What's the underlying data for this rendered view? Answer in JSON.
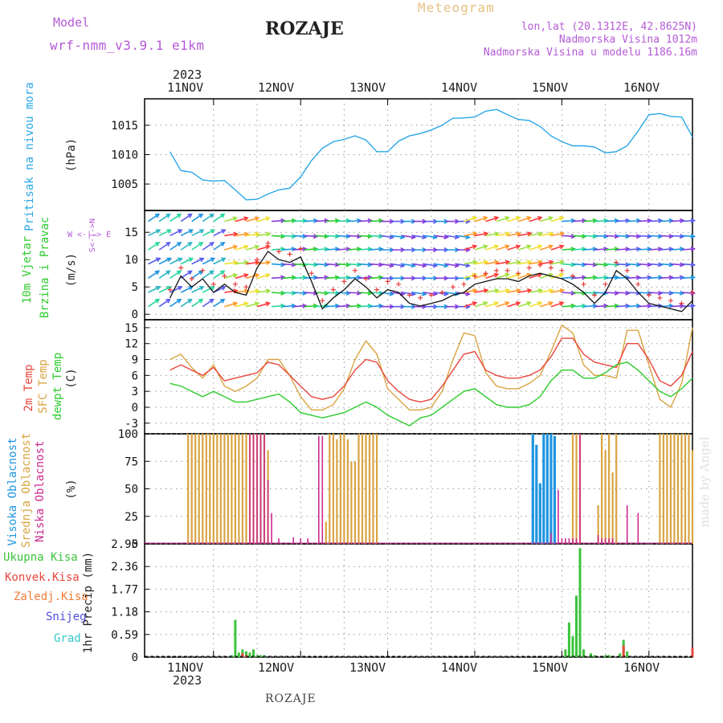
{
  "header": {
    "model_label": "Model",
    "model_name": "wrf-nmm_v3.9.1  e1km",
    "station": "ROZAJE",
    "meteogram": "Meteogram",
    "lonlat": "lon,lat (20.1312E, 42.8625N)",
    "altitude": "Nadmorska Visina 1012m",
    "model_altitude": "Nadmorska Visina u modelu 1186.16m"
  },
  "footer": {
    "station": "ROZAJE",
    "credit": "made by Angel"
  },
  "time_axis": {
    "year": "2023",
    "days": [
      "11NOV",
      "12NOV",
      "13NOV",
      "14NOV",
      "15NOV",
      "16NOV"
    ]
  },
  "panel_labels": {
    "pressure": {
      "title": "Pritisak na nivou mora",
      "unit": "(hPa)"
    },
    "wind": {
      "title1": "10m Vjetar",
      "title2": "Brzina i Pravac",
      "unit": "(m/s)",
      "compass": "W  <-|->  E",
      "compass_ns": "S<-|->N"
    },
    "temp": {
      "t2m": "2m Temp",
      "sfc": "SFC Temp",
      "dew": "dewpt Temp",
      "unit": "(C)"
    },
    "cloud": {
      "high": "Visoka Oblacnost",
      "mid": "Srednja Oblacnost",
      "low": "Niska Oblacnost",
      "unit": "(%)"
    },
    "precip": {
      "total": "Ukupna Kisa",
      "conv": "Konvek.Kisa",
      "frozen": "Zaledj.Kisa",
      "snow": "Snijeg",
      "graupel": "Grad",
      "unit": "1hr Precip (mm)"
    }
  },
  "colors": {
    "pressure": "#29a7e6",
    "t2m": "#e8463c",
    "sfc": "#d9a441",
    "dew": "#2ccc2c",
    "high": "#1f95e0",
    "mid": "#d9a441",
    "low": "#cc2b8f",
    "total": "#3cc43c",
    "conv": "#e8463c",
    "frozen": "#f07c36",
    "snow": "#5050e0",
    "graupel": "#38c8c8"
  },
  "chart_data": [
    {
      "type": "line",
      "title": "Pritisak na nivou mora",
      "ylabel": "(hPa)",
      "yticks": [
        1005,
        1010,
        1015
      ],
      "ylim": [
        1000.5,
        1019.5
      ],
      "x_hours": [
        0,
        3,
        6,
        9,
        12,
        15,
        18,
        21,
        24,
        27,
        30,
        33,
        36,
        39,
        42,
        45,
        48,
        51,
        54,
        57,
        60,
        63,
        66,
        69,
        72,
        75,
        78,
        80,
        84,
        87,
        90,
        93,
        96,
        99,
        102,
        105,
        108,
        111,
        114,
        117,
        120,
        123,
        126,
        129,
        132,
        135,
        138,
        141,
        144
      ],
      "series": [
        {
          "values": [
            1010.5,
            1007.3,
            1007.0,
            1005.7,
            1005.5,
            1005.6,
            1004.0,
            1002.3,
            1002.4,
            1003.3,
            1004.0,
            1004.3,
            1006.2,
            1009.0,
            1011.1,
            1012.2,
            1012.6,
            1013.2,
            1012.5,
            1010.5,
            1010.5,
            1012.3,
            1013.2,
            1013.6,
            1014.2,
            1015.0,
            1016.2,
            1016.2,
            1016.4,
            1017.4,
            1017.7,
            1016.8,
            1016.0,
            1015.8,
            1014.8,
            1013.2,
            1012.2,
            1011.5,
            1011.5,
            1011.3,
            1010.3,
            1010.5,
            1011.5,
            1014.0,
            1016.8,
            1017.0,
            1016.5,
            1016.4,
            1013.0
          ]
        }
      ]
    },
    {
      "type": "line",
      "title": "10m Vjetar Brzina i Pravac",
      "ylabel": "(m/s)",
      "yticks": [
        0,
        5,
        10,
        15
      ],
      "ylim": [
        -1,
        19
      ],
      "x_hours": [
        0,
        3,
        6,
        9,
        12,
        15,
        18,
        21,
        24,
        27,
        30,
        33,
        36,
        39,
        42,
        45,
        48,
        51,
        54,
        57,
        60,
        63,
        66,
        69,
        72,
        75,
        78,
        81,
        84,
        87,
        90,
        93,
        96,
        99,
        102,
        105,
        108,
        111,
        114,
        117,
        120,
        123,
        126,
        129,
        132,
        135,
        138,
        141,
        144
      ],
      "series": [
        {
          "name": "speed",
          "values": [
            3.0,
            7.0,
            5.0,
            6.5,
            4.0,
            5.5,
            4.0,
            3.5,
            8.5,
            11.5,
            10.0,
            9.5,
            10.5,
            6.0,
            1.0,
            3.0,
            4.5,
            6.5,
            5.0,
            3.0,
            4.5,
            4.0,
            2.0,
            1.5,
            2.0,
            2.5,
            3.5,
            4.0,
            5.5,
            6.0,
            6.5,
            6.5,
            6.0,
            7.0,
            7.5,
            7.0,
            6.5,
            5.5,
            4.0,
            2.0,
            4.0,
            8.0,
            6.5,
            4.0,
            2.0,
            1.5,
            1.0,
            0.5,
            2.5
          ]
        }
      ]
    },
    {
      "type": "line",
      "title": "2m Temp / SFC Temp / dewpt Temp",
      "ylabel": "(C)",
      "yticks": [
        -3,
        0,
        3,
        6,
        9,
        12,
        15
      ],
      "ylim": [
        -5,
        16.5
      ],
      "x_hours": [
        0,
        3,
        6,
        9,
        12,
        15,
        18,
        21,
        24,
        27,
        30,
        33,
        36,
        39,
        42,
        45,
        48,
        51,
        54,
        57,
        60,
        63,
        66,
        69,
        72,
        75,
        78,
        81,
        84,
        87,
        90,
        93,
        96,
        99,
        102,
        105,
        108,
        111,
        114,
        117,
        120,
        123,
        126,
        129,
        132,
        135,
        138,
        141,
        144
      ],
      "series": [
        {
          "name": "2m Temp",
          "values": [
            7.0,
            8.0,
            7.0,
            6.0,
            7.5,
            5.0,
            5.5,
            6.0,
            6.5,
            8.5,
            8.0,
            6.0,
            4.0,
            2.0,
            1.5,
            2.0,
            4.0,
            7.0,
            9.0,
            8.5,
            5.0,
            3.0,
            1.5,
            1.0,
            1.5,
            4.0,
            7.0,
            10.0,
            10.5,
            7.0,
            6.0,
            5.5,
            5.5,
            6.0,
            7.0,
            9.5,
            13.0,
            13.0,
            10.0,
            8.5,
            8.0,
            7.5,
            12.0,
            12.0,
            9.0,
            5.0,
            4.0,
            6.0,
            10.5
          ]
        },
        {
          "name": "SFC Temp",
          "values": [
            9.0,
            10.0,
            7.5,
            5.5,
            8.0,
            4.0,
            3.0,
            4.0,
            5.5,
            9.0,
            9.0,
            6.0,
            2.0,
            -0.5,
            -0.5,
            0.5,
            3.5,
            9.0,
            12.5,
            10.0,
            3.5,
            1.5,
            -0.5,
            -0.5,
            0.0,
            3.0,
            9.0,
            14.0,
            13.5,
            6.5,
            4.0,
            3.5,
            3.5,
            4.5,
            6.0,
            10.5,
            15.5,
            14.0,
            8.0,
            6.0,
            6.0,
            5.5,
            14.5,
            14.5,
            8.0,
            1.5,
            0.0,
            4.5,
            15.0
          ]
        },
        {
          "name": "dewpt Temp",
          "values": [
            4.5,
            4.0,
            3.0,
            2.0,
            3.0,
            2.0,
            1.0,
            1.0,
            1.5,
            2.0,
            2.5,
            1.0,
            -1.0,
            -1.5,
            -2.0,
            -1.5,
            -1.0,
            0.0,
            1.0,
            0.0,
            -1.5,
            -2.5,
            -3.5,
            -2.0,
            -1.5,
            0.0,
            1.5,
            3.0,
            3.5,
            2.0,
            0.5,
            0.0,
            0.0,
            0.5,
            2.0,
            5.0,
            7.0,
            7.0,
            5.5,
            5.5,
            6.5,
            8.0,
            8.5,
            7.0,
            5.0,
            3.0,
            2.0,
            3.5,
            5.5
          ]
        }
      ]
    },
    {
      "type": "bar",
      "title": "Visoka / Srednja / Niska Oblacnost",
      "ylabel": "(%)",
      "yticks": [
        0,
        25,
        50,
        75,
        100
      ],
      "ylim": [
        0,
        100
      ],
      "series": [
        {
          "name": "Visoka Oblacnost",
          "hours": [
            100,
            101,
            102,
            103,
            104,
            105,
            106
          ],
          "values": [
            100,
            90,
            55,
            100,
            100,
            100,
            98
          ]
        },
        {
          "name": "Srednja Oblacnost",
          "hours": [
            5,
            6,
            7,
            8,
            9,
            10,
            11,
            12,
            13,
            14,
            15,
            16,
            17,
            18,
            19,
            20,
            21,
            22,
            23,
            24,
            25,
            26,
            27,
            43,
            44,
            45,
            46,
            47,
            48,
            49,
            50,
            51,
            52,
            53,
            54,
            55,
            56,
            57,
            111,
            112,
            113,
            118,
            119,
            120,
            121,
            122,
            123,
            135,
            136,
            137,
            138,
            139,
            140,
            141,
            142,
            143,
            144
          ],
          "values": [
            100,
            100,
            100,
            100,
            100,
            100,
            100,
            100,
            100,
            100,
            100,
            100,
            100,
            100,
            100,
            100,
            100,
            100,
            100,
            100,
            100,
            100,
            85,
            20,
            100,
            100,
            95,
            100,
            100,
            95,
            75,
            75,
            100,
            100,
            100,
            100,
            100,
            100,
            100,
            100,
            100,
            35,
            100,
            85,
            100,
            65,
            100,
            100,
            100,
            100,
            100,
            100,
            100,
            100,
            100,
            100,
            85
          ]
        },
        {
          "name": "Niska Oblacnost",
          "hours": [
            22,
            23,
            24,
            25,
            26,
            27,
            28,
            30,
            34,
            36,
            38,
            41,
            42,
            105,
            107,
            108,
            109,
            110,
            111,
            112,
            113,
            118,
            119,
            120,
            121,
            122,
            126,
            129
          ],
          "values": [
            100,
            100,
            100,
            100,
            100,
            58,
            28,
            5,
            6,
            5,
            5,
            98,
            98,
            10,
            49,
            5,
            5,
            5,
            5,
            5,
            100,
            8,
            5,
            5,
            5,
            5,
            35,
            28
          ]
        }
      ]
    },
    {
      "type": "bar",
      "title": "1hr Precip",
      "ylabel": "1hr Precip (mm)",
      "yticks": [
        0,
        0.59,
        1.18,
        1.77,
        2.36,
        2.95
      ],
      "ylim": [
        0,
        2.95
      ],
      "series": [
        {
          "name": "Ukupna Kisa",
          "hours": [
            17,
            18,
            19,
            20,
            21,
            22,
            23,
            24,
            25,
            26,
            109,
            110,
            111,
            112,
            113,
            114,
            116,
            117,
            120,
            121,
            124,
            125,
            126,
            144
          ],
          "values": [
            0.05,
            0.97,
            0.12,
            0.2,
            0.15,
            0.12,
            0.2,
            0.05,
            0.05,
            0.05,
            0.2,
            0.9,
            0.55,
            1.6,
            2.84,
            0.2,
            0.1,
            0.05,
            0.05,
            0.05,
            0.1,
            0.45,
            0.15,
            0.25
          ]
        },
        {
          "name": "Konvek.Kisa",
          "hours": [
            20,
            21,
            125,
            144
          ],
          "values": [
            0.1,
            0.05,
            0.3,
            0.25
          ]
        }
      ]
    }
  ]
}
